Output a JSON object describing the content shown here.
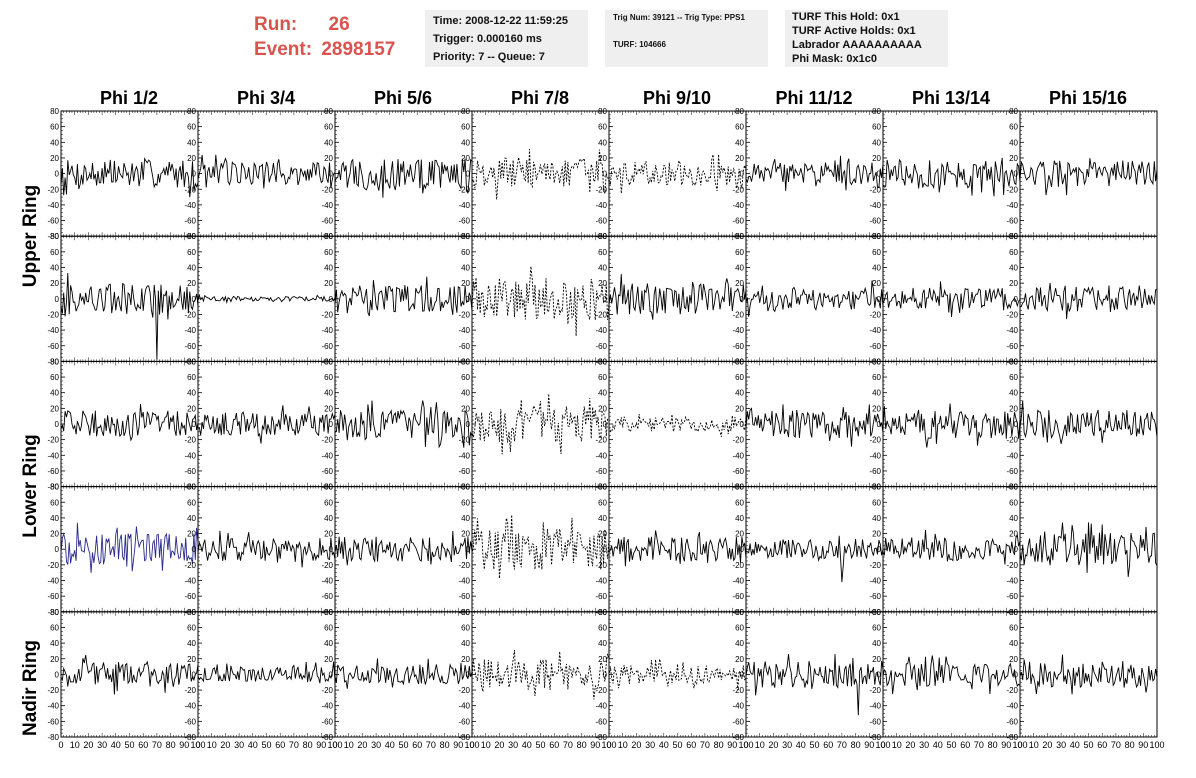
{
  "header": {
    "run_label": "Run:",
    "run_value": "26",
    "event_label": "Event:",
    "event_value": "2898157",
    "time": "Time: 2008-12-22 11:59:25",
    "trigger": "Trigger: 0.000160 ms",
    "priority": "Priority: 7 -- Queue: 7",
    "trig_num": "Trig Num: 39121 -- Trig Type: PPS1",
    "turf": "TURF: 104666",
    "turf_hold": "TURF This Hold: 0x1",
    "turf_active": "TURF Active Holds: 0x1",
    "labrador": "Labrador AAAAAAAAAA",
    "phi_mask": "Phi Mask: 0x1c0"
  },
  "colors": {
    "accent_red": "#d9534f",
    "trace_default": "#000000",
    "trace_highlight": "#2a2a8c",
    "info_box_bg": "#efefef"
  },
  "chart_data": {
    "type": "line",
    "columns": [
      "Phi 1/2",
      "Phi 3/4",
      "Phi 5/6",
      "Phi 7/8",
      "Phi 9/10",
      "Phi 11/12",
      "Phi 13/14",
      "Phi 15/16"
    ],
    "rows": [
      "Upper Ring",
      "Lower Ring",
      "Nadir Ring"
    ],
    "ylim": [
      -80,
      80
    ],
    "yticks": [
      -80,
      -60,
      -40,
      -20,
      0,
      20,
      40,
      60,
      80
    ],
    "xlim": [
      0,
      100
    ],
    "xticks": [
      0,
      10,
      20,
      30,
      40,
      50,
      60,
      70,
      80,
      90,
      100
    ],
    "sample_count": 100,
    "panel_rows": 5,
    "panel_cols": 8,
    "panels": [
      {
        "r": 0,
        "c": 0,
        "amp": 18,
        "style": "solid"
      },
      {
        "r": 0,
        "c": 1,
        "amp": 15,
        "style": "solid"
      },
      {
        "r": 0,
        "c": 2,
        "amp": 20,
        "style": "solid"
      },
      {
        "r": 0,
        "c": 3,
        "amp": 20,
        "style": "dashed"
      },
      {
        "r": 0,
        "c": 4,
        "amp": 15,
        "style": "dashed"
      },
      {
        "r": 0,
        "c": 5,
        "amp": 14,
        "style": "solid"
      },
      {
        "r": 0,
        "c": 6,
        "amp": 18,
        "style": "solid"
      },
      {
        "r": 0,
        "c": 7,
        "amp": 17,
        "style": "solid"
      },
      {
        "r": 1,
        "c": 0,
        "amp": 20,
        "style": "solid",
        "spike": {
          "i": 70,
          "v": -78
        }
      },
      {
        "r": 1,
        "c": 1,
        "amp": 3,
        "style": "solid"
      },
      {
        "r": 1,
        "c": 2,
        "amp": 18,
        "style": "solid"
      },
      {
        "r": 1,
        "c": 3,
        "amp": 28,
        "style": "dashed"
      },
      {
        "r": 1,
        "c": 4,
        "amp": 20,
        "style": "solid"
      },
      {
        "r": 1,
        "c": 5,
        "amp": 14,
        "style": "solid"
      },
      {
        "r": 1,
        "c": 6,
        "amp": 14,
        "style": "solid"
      },
      {
        "r": 1,
        "c": 7,
        "amp": 17,
        "style": "solid"
      },
      {
        "r": 2,
        "c": 0,
        "amp": 17,
        "style": "solid"
      },
      {
        "r": 2,
        "c": 1,
        "amp": 15,
        "style": "solid"
      },
      {
        "r": 2,
        "c": 2,
        "amp": 18,
        "style": "solid"
      },
      {
        "r": 2,
        "c": 3,
        "amp": 24,
        "style": "dashed"
      },
      {
        "r": 2,
        "c": 4,
        "amp": 10,
        "style": "dashed"
      },
      {
        "r": 2,
        "c": 5,
        "amp": 18,
        "style": "solid"
      },
      {
        "r": 2,
        "c": 6,
        "amp": 19,
        "style": "solid"
      },
      {
        "r": 2,
        "c": 7,
        "amp": 18,
        "style": "solid"
      },
      {
        "r": 3,
        "c": 0,
        "amp": 20,
        "style": "solid",
        "color": "highlight"
      },
      {
        "r": 3,
        "c": 1,
        "amp": 15,
        "style": "solid"
      },
      {
        "r": 3,
        "c": 2,
        "amp": 16,
        "style": "solid"
      },
      {
        "r": 3,
        "c": 3,
        "amp": 26,
        "style": "dashed"
      },
      {
        "r": 3,
        "c": 4,
        "amp": 16,
        "style": "solid"
      },
      {
        "r": 3,
        "c": 5,
        "amp": 12,
        "style": "solid",
        "spike": {
          "i": 70,
          "v": -42
        }
      },
      {
        "r": 3,
        "c": 6,
        "amp": 15,
        "style": "solid"
      },
      {
        "r": 3,
        "c": 7,
        "amp": 21,
        "style": "solid"
      },
      {
        "r": 4,
        "c": 0,
        "amp": 16,
        "style": "solid"
      },
      {
        "r": 4,
        "c": 1,
        "amp": 10,
        "style": "solid"
      },
      {
        "r": 4,
        "c": 2,
        "amp": 13,
        "style": "solid"
      },
      {
        "r": 4,
        "c": 3,
        "amp": 20,
        "style": "dashed"
      },
      {
        "r": 4,
        "c": 4,
        "amp": 12,
        "style": "dashed"
      },
      {
        "r": 4,
        "c": 5,
        "amp": 17,
        "style": "solid",
        "spike": {
          "i": 82,
          "v": -52
        }
      },
      {
        "r": 4,
        "c": 6,
        "amp": 15,
        "style": "solid"
      },
      {
        "r": 4,
        "c": 7,
        "amp": 17,
        "style": "solid"
      }
    ]
  }
}
